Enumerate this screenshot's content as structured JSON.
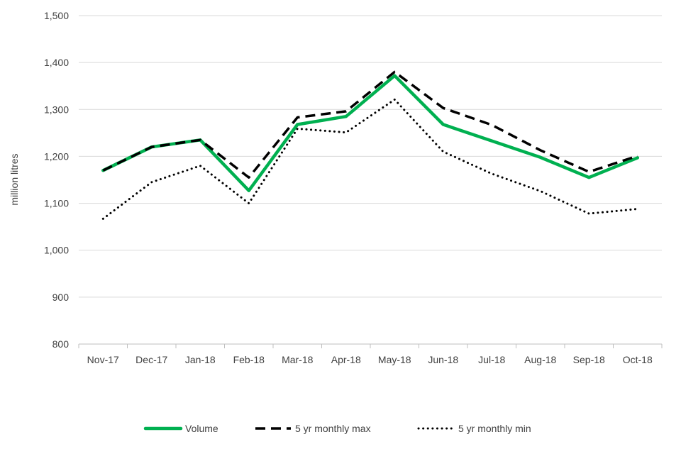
{
  "chart_data": {
    "type": "line",
    "title": "",
    "xlabel": "",
    "ylabel": "million litres",
    "ylim": [
      800,
      1500
    ],
    "y_ticks": [
      800,
      900,
      1000,
      1100,
      1200,
      1300,
      1400,
      1500
    ],
    "y_tick_labels": [
      "800",
      "900",
      "1,000",
      "1,100",
      "1,200",
      "1,300",
      "1,400",
      "1,500"
    ],
    "categories": [
      "Nov-17",
      "Dec-17",
      "Jan-18",
      "Feb-18",
      "Mar-18",
      "Apr-18",
      "May-18",
      "Jun-18",
      "Jul-18",
      "Aug-18",
      "Sep-18",
      "Oct-18"
    ],
    "grid": "horizontal",
    "legend_position": "bottom",
    "series": [
      {
        "name": "Volume",
        "color": "#00b050",
        "style": "solid",
        "values": [
          1170,
          1220,
          1235,
          1127,
          1268,
          1285,
          1372,
          1268,
          1233,
          1198,
          1155,
          1197
        ]
      },
      {
        "name": "5 yr monthly max",
        "color": "#000000",
        "style": "dashed",
        "values": [
          1170,
          1220,
          1235,
          1155,
          1283,
          1296,
          1380,
          1303,
          1267,
          1213,
          1167,
          1201
        ]
      },
      {
        "name": "5 yr monthly min",
        "color": "#000000",
        "style": "dotted",
        "values": [
          1067,
          1145,
          1180,
          1100,
          1259,
          1251,
          1321,
          1210,
          1163,
          1126,
          1078,
          1088
        ]
      }
    ]
  }
}
